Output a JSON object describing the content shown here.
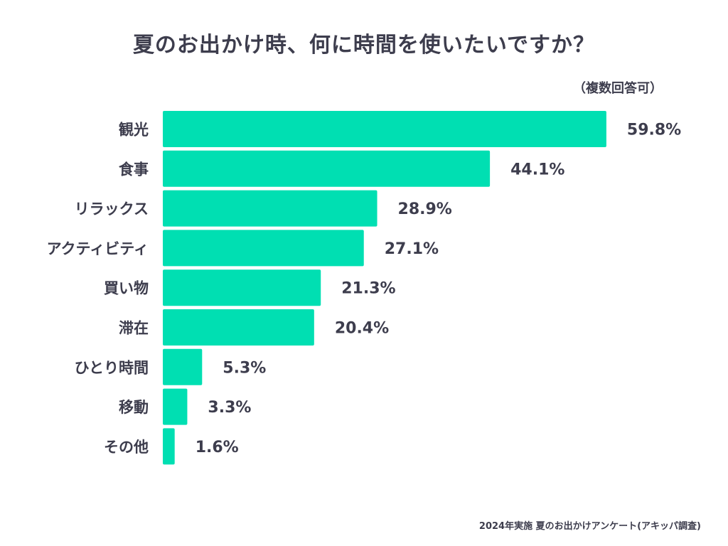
{
  "chart_data": {
    "type": "bar",
    "orientation": "horizontal",
    "title": "夏のお出かけ時、何に時間を使いたいですか？",
    "subtitle": "（複数回答可）",
    "categories": [
      "観光",
      "食事",
      "リラックス",
      "アクティビティ",
      "買い物",
      "滞在",
      "ひとり時間",
      "移動",
      "その他"
    ],
    "values": [
      59.8,
      44.1,
      28.9,
      27.1,
      21.3,
      20.4,
      5.3,
      3.3,
      1.6
    ],
    "value_labels": [
      "59.8%",
      "44.1%",
      "28.9%",
      "27.1%",
      "21.3%",
      "20.4%",
      "5.3%",
      "3.3%",
      "1.6%"
    ],
    "unit": "%",
    "xlim": [
      0,
      60
    ],
    "bar_color": "#00dfb2",
    "grid": false,
    "source": "2024年実施 夏のお出かけアンケート(アキッパ調査)"
  }
}
